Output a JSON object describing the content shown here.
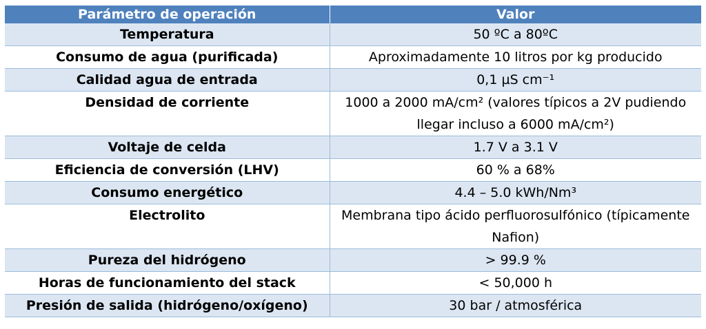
{
  "table": {
    "headers": [
      "Parámetro de operación",
      "Valor"
    ],
    "rows": [
      {
        "parameter": "Temperatura",
        "value": "50 ºC a 80ºC"
      },
      {
        "parameter": "Consumo de agua (purificada)",
        "value": "Aproximadamente 10 litros por kg producido"
      },
      {
        "parameter": "Calidad agua de entrada",
        "value": "0,1 µS cm⁻¹"
      },
      {
        "parameter": "Densidad de corriente",
        "value": "1000 a 2000 mA/cm² (valores típicos a 2V pudiendo llegar incluso a 6000 mA/cm²)"
      },
      {
        "parameter": "Voltaje de celda",
        "value": "1.7 V a 3.1 V"
      },
      {
        "parameter": "Eficiencia de conversión (LHV)",
        "value": "60 % a 68%"
      },
      {
        "parameter": "Consumo energético",
        "value": "4.4 – 5.0 kWh/Nm³"
      },
      {
        "parameter": "Electrolito",
        "value": "Membrana tipo ácido perfluorosulfónico (típicamente Nafion)"
      },
      {
        "parameter": "Pureza del hidrógeno",
        "value": "> 99.9 %"
      },
      {
        "parameter": "Horas de funcionamiento del stack",
        "value": "< 50,000 h"
      },
      {
        "parameter": "Presión de salida (hidrógeno/oxígeno)",
        "value": "30 bar / atmosférica"
      }
    ]
  }
}
